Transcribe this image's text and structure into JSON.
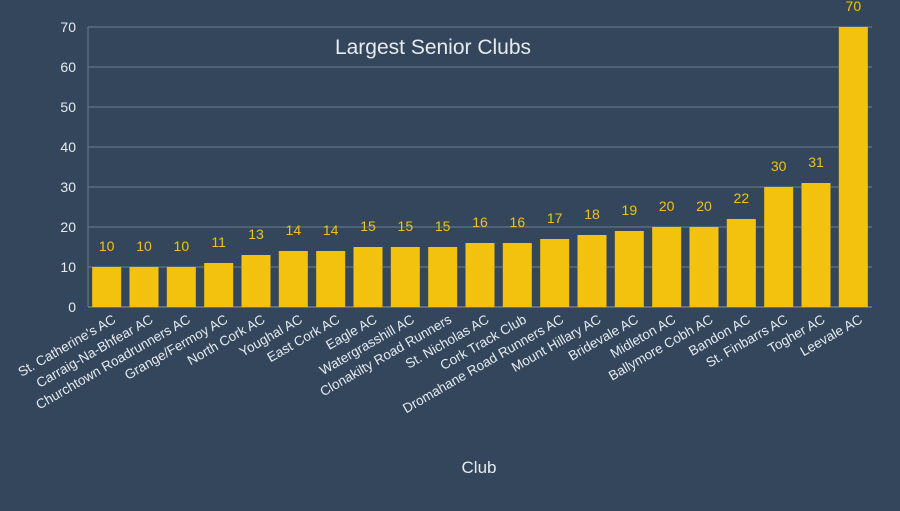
{
  "chart_data": {
    "type": "bar",
    "title": "Largest Senior Clubs",
    "xlabel": "Club",
    "ylabel": "",
    "ylim": [
      0,
      70
    ],
    "yticks": [
      0,
      10,
      20,
      30,
      40,
      50,
      60,
      70
    ],
    "grid": true,
    "legend": "none",
    "categories": [
      "St. Catherine's AC",
      "Carraig-Na-Bhfear AC",
      "Churchtown Roadrunners AC",
      "Grange/Fermoy AC",
      "North Cork AC",
      "Youghal AC",
      "East Cork AC",
      "Eagle AC",
      "Watergrasshill AC",
      "Clonakilty Road Runners",
      "St. Nicholas AC",
      "Cork Track Club",
      "Dromahane Road Runners AC",
      "Mount Hillary AC",
      "Bridevale AC",
      "Midleton AC",
      "Ballymore Cobh AC",
      "Bandon AC",
      "St. Finbarrs AC",
      "Togher AC",
      "Leevale AC"
    ],
    "values": [
      10,
      10,
      10,
      11,
      13,
      14,
      14,
      15,
      15,
      15,
      16,
      16,
      17,
      18,
      19,
      20,
      20,
      22,
      30,
      31,
      70
    ],
    "colors": {
      "background": "#34465c",
      "bar": "#f2c20f",
      "grid": "#6d7d90",
      "axis_text": "#e6ebf0",
      "data_label": "#f2c20f"
    }
  }
}
